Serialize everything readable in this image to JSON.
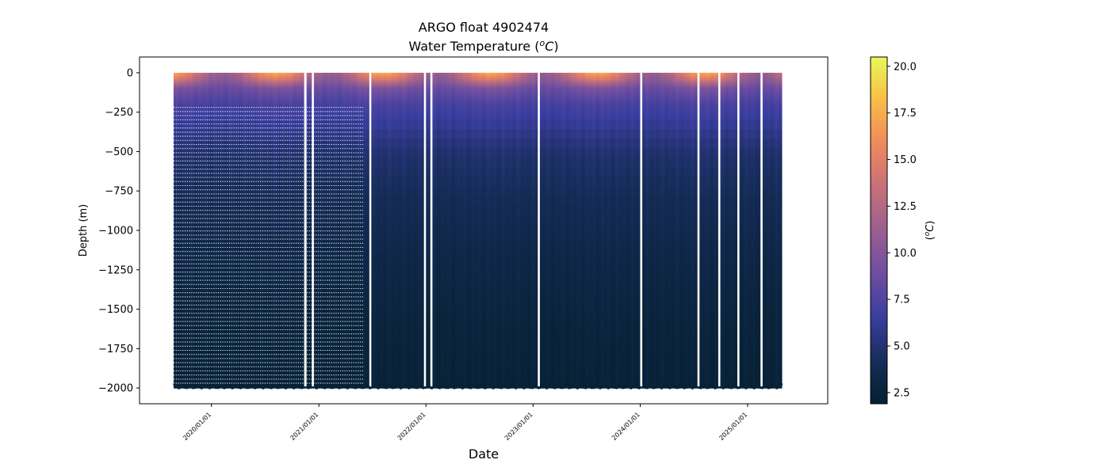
{
  "chart_data": {
    "type": "scatter",
    "title": "ARGO float 4902474",
    "subtitle_prefix": "Water Temperature (",
    "subtitle_unit_sup": "o",
    "subtitle_unit": "C",
    "subtitle_suffix": ")",
    "xlabel": "Date",
    "ylabel": "Depth (m)",
    "colorbar_label_prefix": "(",
    "colorbar_label_sup": "o",
    "colorbar_label_unit": "C",
    "colorbar_label_suffix": ")",
    "xlim": [
      "2019-05-01",
      "2025-10-01"
    ],
    "ylim": [
      -2100,
      100
    ],
    "data_x_range": [
      "2019-08-25",
      "2025-04-20"
    ],
    "y_ticks": [
      0,
      -250,
      -500,
      -750,
      -1000,
      -1250,
      -1500,
      -1750,
      -2000
    ],
    "y_tick_labels": [
      "0",
      "−250",
      "−500",
      "−750",
      "−1000",
      "−1250",
      "−1500",
      "−1750",
      "−2000"
    ],
    "x_ticks": [
      "2020-01-01",
      "2021-01-01",
      "2022-01-01",
      "2023-01-01",
      "2024-01-01",
      "2025-01-01"
    ],
    "x_tick_labels": [
      "2020/01/01",
      "2021/01/01",
      "2022/01/01",
      "2023/01/01",
      "2024/01/01",
      "2025/01/01"
    ],
    "colorbar": {
      "range": [
        1.9,
        20.5
      ],
      "ticks": [
        2.5,
        5.0,
        7.5,
        10.0,
        12.5,
        15.0,
        17.5,
        20.0
      ],
      "tick_labels": [
        "2.5",
        "5.0",
        "7.5",
        "10.0",
        "12.5",
        "15.0",
        "17.5",
        "20.0"
      ],
      "colormap": "thermal",
      "colors": [
        "#04202f",
        "#172d5b",
        "#3a3e9f",
        "#6e4ea0",
        "#9a5f8e",
        "#c7707a",
        "#f0895c",
        "#f9bc48",
        "#e8f859"
      ]
    },
    "temperature_profile": {
      "depths": [
        0,
        -50,
        -100,
        -200,
        -300,
        -500,
        -800,
        -1200,
        -1600,
        -2000
      ],
      "summer_temperature": [
        17.5,
        14.0,
        9.5,
        7.3,
        6.5,
        5.0,
        4.0,
        3.2,
        2.7,
        2.4
      ],
      "winter_temperature": [
        11.0,
        10.0,
        8.5,
        7.0,
        6.3,
        4.8,
        3.9,
        3.1,
        2.6,
        2.4
      ]
    },
    "sparse_sampling_period": [
      "2019-08-25",
      "2021-06-01"
    ],
    "gaps": [
      [
        "2020-11-12",
        "2020-11-20"
      ],
      [
        "2020-12-08",
        "2020-12-15"
      ],
      [
        "2021-06-22",
        "2021-06-28"
      ],
      [
        "2021-12-25",
        "2022-01-01"
      ],
      [
        "2022-01-16",
        "2022-01-23"
      ],
      [
        "2023-01-17",
        "2023-01-24"
      ],
      [
        "2024-01-01",
        "2024-01-08"
      ],
      [
        "2024-07-14",
        "2024-07-21"
      ],
      [
        "2024-09-23",
        "2024-09-30"
      ],
      [
        "2024-11-27",
        "2024-12-04"
      ],
      [
        "2025-02-14",
        "2025-02-21"
      ]
    ]
  }
}
